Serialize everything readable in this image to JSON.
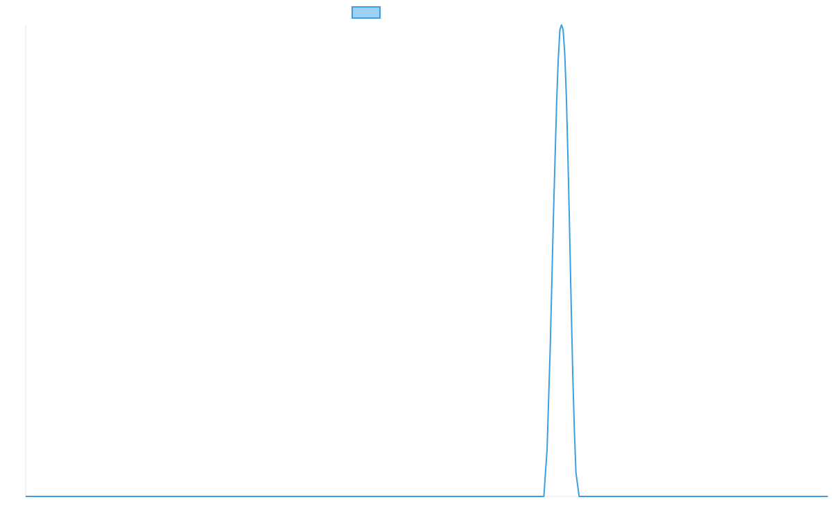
{
  "chart_data": {
    "type": "line",
    "title": "",
    "xlabel": "",
    "ylabel": "",
    "xlim": [
      0,
      1000
    ],
    "ylim": [
      0,
      1
    ],
    "grid": false,
    "legend_placement": "top-center",
    "series": [
      {
        "name": "",
        "color": "#3a9fe0",
        "fill_color": "#9dd0f3",
        "x": [
          0,
          646,
          650,
          654,
          658,
          662,
          664,
          666,
          668,
          670,
          672,
          674,
          676,
          678,
          680,
          682,
          684,
          686,
          690,
          694,
          1000
        ],
        "y": [
          0,
          0,
          0.1,
          0.32,
          0.6,
          0.84,
          0.93,
          0.99,
          1.0,
          0.99,
          0.94,
          0.85,
          0.72,
          0.57,
          0.41,
          0.26,
          0.14,
          0.05,
          0,
          0,
          0
        ]
      }
    ]
  }
}
